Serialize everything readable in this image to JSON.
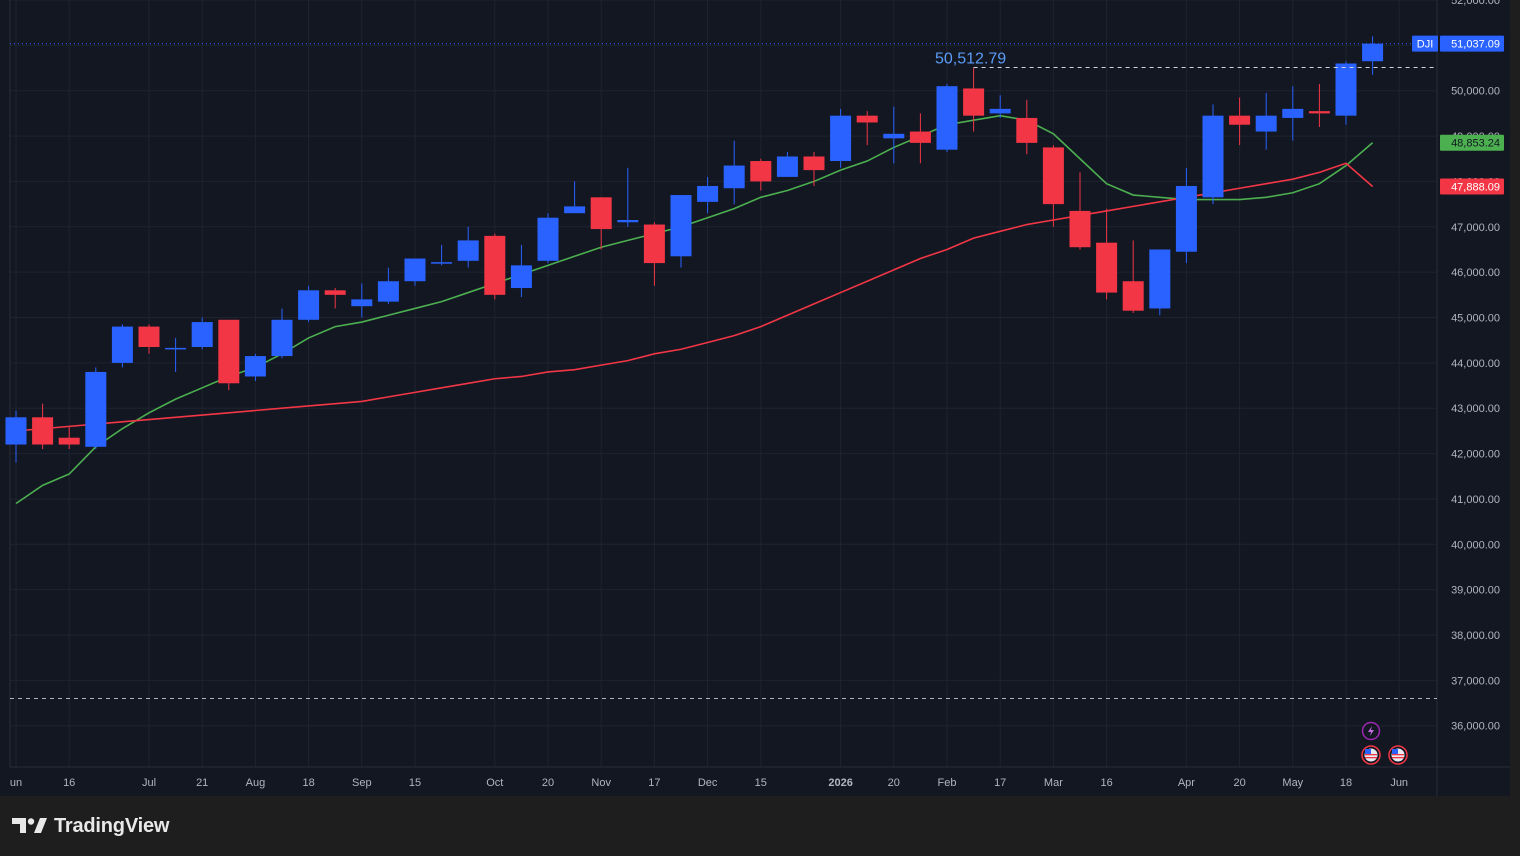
{
  "footer": {
    "brand": "TradingView"
  },
  "chart_data": {
    "type": "candlestick",
    "symbol": "DJI",
    "last_price_label": "51,037.09",
    "ma_fast_label": "48,853.24",
    "ma_slow_label": "47,888.09",
    "high_marker_label": "50,512.79",
    "high_marker_value": 50512.79,
    "dashed_level_value": 36600,
    "ylim": [
      35300,
      52000
    ],
    "y_ticks": [
      36000,
      37000,
      38000,
      39000,
      40000,
      41000,
      42000,
      43000,
      44000,
      45000,
      46000,
      47000,
      48000,
      49000,
      50000,
      51000,
      52000
    ],
    "x_tick_labels": [
      {
        "i": 0,
        "label": "un"
      },
      {
        "i": 2,
        "label": "16"
      },
      {
        "i": 5,
        "label": "Jul"
      },
      {
        "i": 7,
        "label": "21"
      },
      {
        "i": 9,
        "label": "Aug"
      },
      {
        "i": 11,
        "label": "18"
      },
      {
        "i": 13,
        "label": "Sep"
      },
      {
        "i": 15,
        "label": "15"
      },
      {
        "i": 18,
        "label": "Oct"
      },
      {
        "i": 20,
        "label": "20"
      },
      {
        "i": 22,
        "label": "Nov"
      },
      {
        "i": 24,
        "label": "17"
      },
      {
        "i": 26,
        "label": "Dec"
      },
      {
        "i": 28,
        "label": "15"
      },
      {
        "i": 31,
        "label": "2026"
      },
      {
        "i": 33,
        "label": "20"
      },
      {
        "i": 35,
        "label": "Feb"
      },
      {
        "i": 37,
        "label": "17"
      },
      {
        "i": 39,
        "label": "Mar"
      },
      {
        "i": 41,
        "label": "16"
      },
      {
        "i": 44,
        "label": "Apr"
      },
      {
        "i": 46,
        "label": "20"
      },
      {
        "i": 48,
        "label": "May"
      },
      {
        "i": 50,
        "label": "18"
      },
      {
        "i": 52,
        "label": "Jun"
      }
    ],
    "candles": [
      {
        "o": 42200,
        "h": 42950,
        "l": 41800,
        "c": 42800
      },
      {
        "o": 42800,
        "h": 43100,
        "l": 42100,
        "c": 42200
      },
      {
        "o": 42350,
        "h": 42600,
        "l": 42100,
        "c": 42200
      },
      {
        "o": 42150,
        "h": 43900,
        "l": 42100,
        "c": 43800
      },
      {
        "o": 44000,
        "h": 44850,
        "l": 43900,
        "c": 44800
      },
      {
        "o": 44800,
        "h": 44850,
        "l": 44200,
        "c": 44350
      },
      {
        "o": 44330,
        "h": 44550,
        "l": 43800,
        "c": 44330
      },
      {
        "o": 44350,
        "h": 45000,
        "l": 44300,
        "c": 44900
      },
      {
        "o": 44950,
        "h": 44950,
        "l": 43400,
        "c": 43550
      },
      {
        "o": 43700,
        "h": 44200,
        "l": 43600,
        "c": 44150
      },
      {
        "o": 44150,
        "h": 45200,
        "l": 44100,
        "c": 44950
      },
      {
        "o": 44950,
        "h": 45700,
        "l": 44900,
        "c": 45600
      },
      {
        "o": 45600,
        "h": 45650,
        "l": 45200,
        "c": 45500
      },
      {
        "o": 45250,
        "h": 45750,
        "l": 45000,
        "c": 45400
      },
      {
        "o": 45350,
        "h": 46100,
        "l": 45300,
        "c": 45800
      },
      {
        "o": 45800,
        "h": 46300,
        "l": 45700,
        "c": 46300
      },
      {
        "o": 46200,
        "h": 46600,
        "l": 46150,
        "c": 46220
      },
      {
        "o": 46250,
        "h": 47000,
        "l": 46100,
        "c": 46700
      },
      {
        "o": 46800,
        "h": 46850,
        "l": 45400,
        "c": 45500
      },
      {
        "o": 45650,
        "h": 46600,
        "l": 45450,
        "c": 46150
      },
      {
        "o": 46250,
        "h": 47300,
        "l": 46200,
        "c": 47200
      },
      {
        "o": 47300,
        "h": 48000,
        "l": 47300,
        "c": 47450
      },
      {
        "o": 47650,
        "h": 47650,
        "l": 46500,
        "c": 46950
      },
      {
        "o": 47100,
        "h": 48300,
        "l": 47000,
        "c": 47150
      },
      {
        "o": 47050,
        "h": 47100,
        "l": 45700,
        "c": 46200
      },
      {
        "o": 46350,
        "h": 47700,
        "l": 46100,
        "c": 47700
      },
      {
        "o": 47550,
        "h": 48100,
        "l": 47300,
        "c": 47900
      },
      {
        "o": 47850,
        "h": 48900,
        "l": 47500,
        "c": 48350
      },
      {
        "o": 48450,
        "h": 48500,
        "l": 47800,
        "c": 48000
      },
      {
        "o": 48100,
        "h": 48650,
        "l": 48100,
        "c": 48550
      },
      {
        "o": 48550,
        "h": 48650,
        "l": 47900,
        "c": 48250
      },
      {
        "o": 48450,
        "h": 49600,
        "l": 48300,
        "c": 49450
      },
      {
        "o": 49450,
        "h": 49550,
        "l": 48800,
        "c": 49300
      },
      {
        "o": 48950,
        "h": 49650,
        "l": 48400,
        "c": 49050
      },
      {
        "o": 49100,
        "h": 49500,
        "l": 48400,
        "c": 48850
      },
      {
        "o": 48700,
        "h": 50150,
        "l": 48650,
        "c": 50100
      },
      {
        "o": 50050,
        "h": 50512.79,
        "l": 49100,
        "c": 49450
      },
      {
        "o": 49500,
        "h": 49900,
        "l": 49400,
        "c": 49600
      },
      {
        "o": 49400,
        "h": 49800,
        "l": 48600,
        "c": 48850
      },
      {
        "o": 48750,
        "h": 48800,
        "l": 47000,
        "c": 47500
      },
      {
        "o": 47350,
        "h": 48200,
        "l": 46500,
        "c": 46550
      },
      {
        "o": 46650,
        "h": 47400,
        "l": 45400,
        "c": 45550
      },
      {
        "o": 45800,
        "h": 46700,
        "l": 45100,
        "c": 45150
      },
      {
        "o": 45200,
        "h": 46500,
        "l": 45050,
        "c": 46500
      },
      {
        "o": 46450,
        "h": 48300,
        "l": 46200,
        "c": 47900
      },
      {
        "o": 47650,
        "h": 49700,
        "l": 47500,
        "c": 49450
      },
      {
        "o": 49450,
        "h": 49850,
        "l": 48800,
        "c": 49250
      },
      {
        "o": 49100,
        "h": 49950,
        "l": 48700,
        "c": 49450
      },
      {
        "o": 49400,
        "h": 50100,
        "l": 48900,
        "c": 49600
      },
      {
        "o": 49550,
        "h": 50150,
        "l": 49200,
        "c": 49500
      },
      {
        "o": 49450,
        "h": 50650,
        "l": 49250,
        "c": 50600
      },
      {
        "o": 50650,
        "h": 51200,
        "l": 50350,
        "c": 51037.09
      }
    ],
    "series": [
      {
        "name": "",
        "role": "ma-fast",
        "color": "#4caf50",
        "values": [
          40900,
          41300,
          41550,
          42150,
          42550,
          42900,
          43200,
          43450,
          43700,
          43900,
          44200,
          44550,
          44800,
          44900,
          45050,
          45200,
          45350,
          45550,
          45750,
          45950,
          46150,
          46350,
          46550,
          46700,
          46850,
          47000,
          47200,
          47400,
          47650,
          47800,
          48000,
          48250,
          48450,
          48750,
          49000,
          49250,
          49350,
          49450,
          49350,
          49050,
          48500,
          47950,
          47700,
          47650,
          47600,
          47600,
          47600,
          47650,
          47750,
          47950,
          48350,
          48853.24
        ]
      },
      {
        "name": "",
        "role": "ma-slow",
        "color": "#f23645",
        "values": [
          42500,
          42550,
          42600,
          42650,
          42700,
          42750,
          42800,
          42850,
          42900,
          42950,
          43000,
          43050,
          43100,
          43150,
          43250,
          43350,
          43450,
          43550,
          43650,
          43700,
          43800,
          43850,
          43950,
          44050,
          44200,
          44300,
          44450,
          44600,
          44800,
          45050,
          45300,
          45550,
          45800,
          46050,
          46300,
          46500,
          46750,
          46900,
          47050,
          47150,
          47250,
          47350,
          47450,
          47550,
          47650,
          47750,
          47850,
          47950,
          48050,
          48200,
          48400,
          47888.09
        ]
      }
    ],
    "colors": {
      "up": "#2962ff",
      "down": "#f23645",
      "ma_fast": "#4caf50",
      "ma_slow": "#f23645",
      "background": "#131722",
      "grid": "#1f2330",
      "axis_text": "#b2b5be"
    }
  }
}
